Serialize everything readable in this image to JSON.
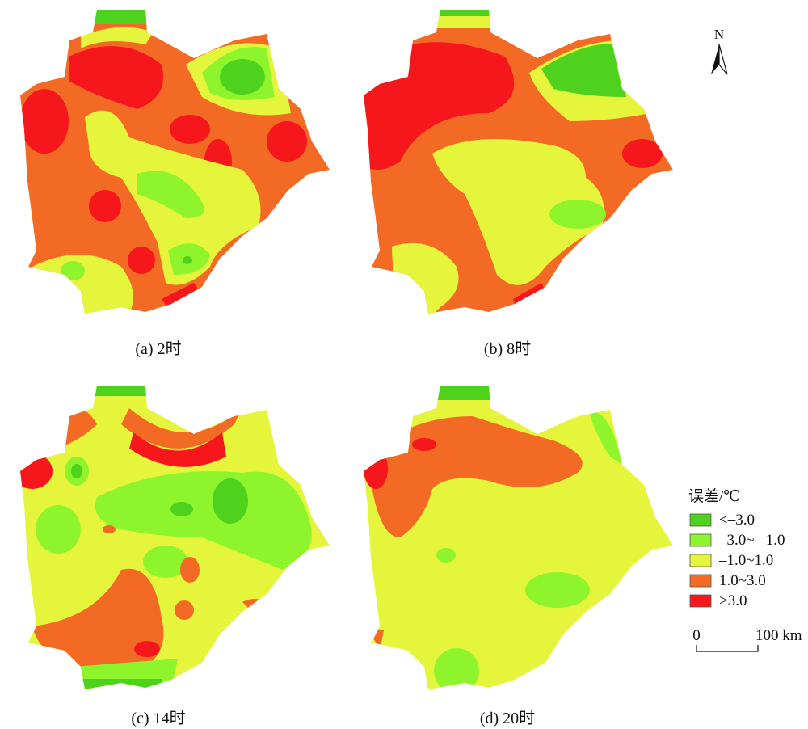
{
  "panels": [
    {
      "label": "(a) 2时"
    },
    {
      "label": "(b) 8时"
    },
    {
      "label": "(c) 14时"
    },
    {
      "label": "(d) 20时"
    }
  ],
  "legend": {
    "title": "误差/℃",
    "items": [
      {
        "label": "<–3.0",
        "color": "#4fd21e"
      },
      {
        "label": "–3.0~ –1.0",
        "color": "#8ef52c"
      },
      {
        "label": "–1.0~1.0",
        "color": "#e5f53c"
      },
      {
        "label": "1.0~3.0",
        "color": "#f26a23"
      },
      {
        "label": ">3.0",
        "color": "#f5171b"
      }
    ]
  },
  "scale_bar": {
    "start": "0",
    "end": "100 km"
  },
  "north": "N"
}
